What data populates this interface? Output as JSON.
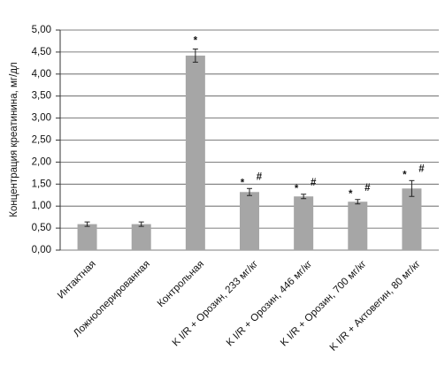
{
  "chart_data": {
    "type": "bar",
    "y_label": "Концентрация креатинина, мг/дл",
    "categories": [
      "Интактная",
      "Ложнооперированная",
      "Контрольная",
      "K I/R + Орозин, 233 мг/кг",
      "K I/R + Орозин, 446 мг/кг",
      "K I/R + Орозин, 700 мг/кг",
      "K I/R + Актовегин, 80 мг/кг"
    ],
    "values": [
      0.59,
      0.59,
      4.42,
      1.32,
      1.22,
      1.1,
      1.4
    ],
    "errors": [
      0.05,
      0.05,
      0.15,
      0.08,
      0.05,
      0.05,
      0.18
    ],
    "color": "#a6a6a6",
    "ylim": [
      0,
      5
    ],
    "yticks": [
      {
        "value": 0,
        "label": "0,00"
      },
      {
        "value": 0.5,
        "label": "0,50"
      },
      {
        "value": 1,
        "label": "1,00"
      },
      {
        "value": 1.5,
        "label": "1,50"
      },
      {
        "value": 2,
        "label": "2,00"
      },
      {
        "value": 2.5,
        "label": "2,50"
      },
      {
        "value": 3,
        "label": "3,00"
      },
      {
        "value": 3.5,
        "label": "3,50"
      },
      {
        "value": 4,
        "label": "4,00"
      },
      {
        "value": 4.5,
        "label": "4,50"
      },
      {
        "value": 5,
        "label": "5,00"
      }
    ],
    "grid": true,
    "annotations": [
      {
        "category": "Контрольная",
        "text": "*"
      },
      {
        "category": "K I/R + Орозин, 233 мг/кг",
        "text": "*"
      },
      {
        "category": "K I/R + Орозин, 233 мг/кг",
        "text": "#"
      },
      {
        "category": "K I/R + Орозин, 446 мг/кг",
        "text": "*"
      },
      {
        "category": "K I/R + Орозин, 446 мг/кг",
        "text": "#"
      },
      {
        "category": "K I/R + Орозин, 700 мг/кг",
        "text": "*"
      },
      {
        "category": "K I/R + Орозин, 700 мг/кг",
        "text": "#"
      },
      {
        "category": "K I/R + Актовегин, 80 мг/кг",
        "text": "*"
      },
      {
        "category": "K I/R + Актовегин, 80 мг/кг",
        "text": "#"
      }
    ]
  }
}
